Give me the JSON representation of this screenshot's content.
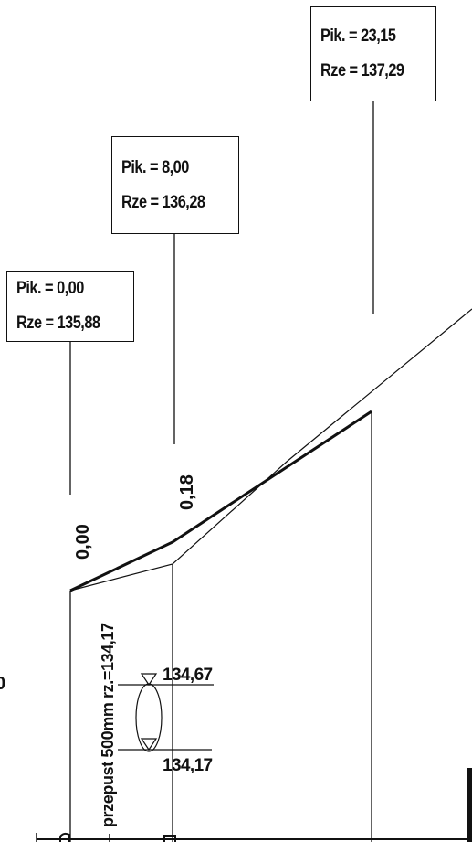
{
  "stations": [
    {
      "pik_text": "Pik. = 0,00",
      "rze_text": "Rze = 135,88",
      "offset": "0,00"
    },
    {
      "pik_text": "Pik. = 8,00",
      "rze_text": "Rze = 136,28",
      "offset": "0,18"
    },
    {
      "pik_text": "Pik. = 23,15",
      "rze_text": "Rze = 137,29",
      "offset": ""
    }
  ],
  "culvert": {
    "label": "przepust 500mm  rz.=134,17",
    "top_level": "134,67",
    "bottom_level": "134,17"
  },
  "edge_text": {
    "left_partial": "0"
  }
}
